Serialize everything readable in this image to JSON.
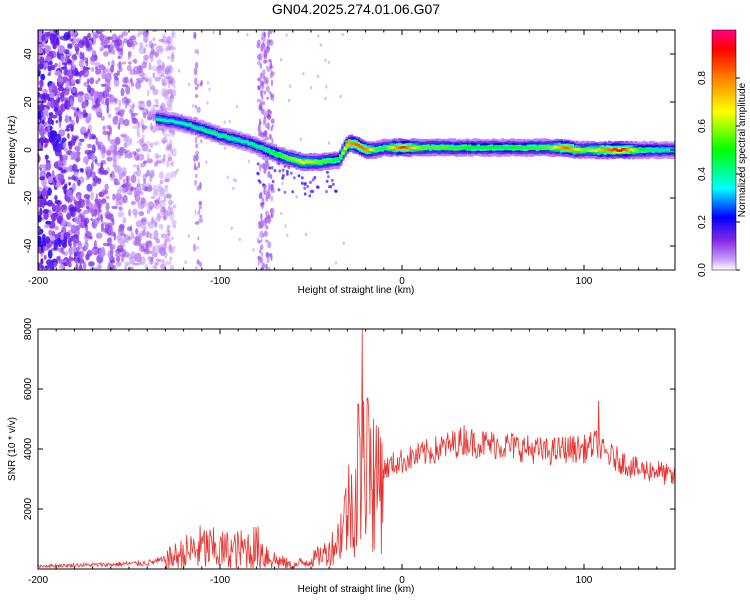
{
  "title": "GN04.2025.274.01.06.G07",
  "chart_data": [
    {
      "type": "heatmap",
      "xlabel": "Height of straight line (km)",
      "ylabel": "Frequency (Hz)",
      "xlim": [
        -200,
        150
      ],
      "ylim": [
        -50,
        50
      ],
      "x_ticks": [
        -200,
        -100,
        0,
        100
      ],
      "y_ticks": [
        -40,
        -20,
        0,
        20,
        40
      ],
      "colorbar": {
        "label": "Normalized spectral amplitude",
        "range": [
          0.0,
          1.0
        ],
        "ticks": [
          "0.0",
          "0.2",
          "0.4",
          "0.6",
          "0.8"
        ],
        "tick_values": [
          0.0,
          0.2,
          0.4,
          0.6,
          0.8
        ],
        "colormap": "hsv"
      },
      "ridge": {
        "x": [
          -135,
          -120,
          -100,
          -85,
          -75,
          -65,
          -55,
          -45,
          -35,
          -30,
          -25,
          -20,
          -15,
          -10,
          0,
          10,
          20,
          40,
          60,
          80,
          90,
          95,
          100,
          110,
          120,
          130,
          140,
          150
        ],
        "y": [
          13,
          11,
          6,
          3,
          0,
          -3,
          -5,
          -5,
          -4,
          3,
          2,
          0,
          0,
          1,
          1,
          1,
          1,
          1,
          1,
          1,
          1,
          0,
          0,
          0,
          0,
          0,
          0,
          0
        ],
        "amplitude": [
          0.4,
          0.4,
          0.45,
          0.4,
          0.45,
          0.55,
          0.65,
          0.55,
          0.5,
          0.75,
          0.85,
          0.8,
          0.55,
          0.5,
          0.9,
          0.55,
          0.55,
          0.5,
          0.5,
          0.55,
          0.85,
          0.7,
          0.55,
          0.75,
          0.95,
          0.5,
          0.45,
          0.4
        ]
      },
      "noise_region_x": [
        -200,
        -130
      ],
      "noise_streaks_x": [
        -112,
        -75
      ]
    },
    {
      "type": "line",
      "xlabel": "Height of straight line (km)",
      "ylabel": "SNR (10 * v/v)",
      "xlim": [
        -200,
        150
      ],
      "ylim": [
        0,
        8000
      ],
      "x_ticks": [
        -200,
        -100,
        0,
        100
      ],
      "y_ticks": [
        2000,
        4000,
        6000,
        8000
      ],
      "color": "#e8322e",
      "envelope": {
        "x": [
          -200,
          -160,
          -140,
          -130,
          -120,
          -110,
          -100,
          -90,
          -80,
          -70,
          -60,
          -50,
          -40,
          -35,
          -30,
          -25,
          -22,
          -20,
          -15,
          -10,
          -5,
          0,
          10,
          20,
          30,
          35,
          40,
          60,
          80,
          90,
          100,
          108,
          110,
          120,
          130,
          140,
          150
        ],
        "y": [
          100,
          150,
          200,
          300,
          500,
          700,
          600,
          600,
          700,
          300,
          100,
          300,
          600,
          1000,
          2000,
          2500,
          3000,
          3800,
          3000,
          3300,
          3500,
          3600,
          3800,
          4000,
          4200,
          4300,
          4200,
          4100,
          3900,
          4000,
          4000,
          4200,
          3900,
          3600,
          3300,
          3300,
          3000
        ]
      },
      "spikes": [
        {
          "x": -22,
          "y": 8000
        },
        {
          "x": -19,
          "y": 5700
        },
        {
          "x": -24,
          "y": 5500
        },
        {
          "x": 108,
          "y": 5600
        },
        {
          "x": -14,
          "y": 4800
        },
        {
          "x": 34,
          "y": 4800
        }
      ]
    }
  ]
}
